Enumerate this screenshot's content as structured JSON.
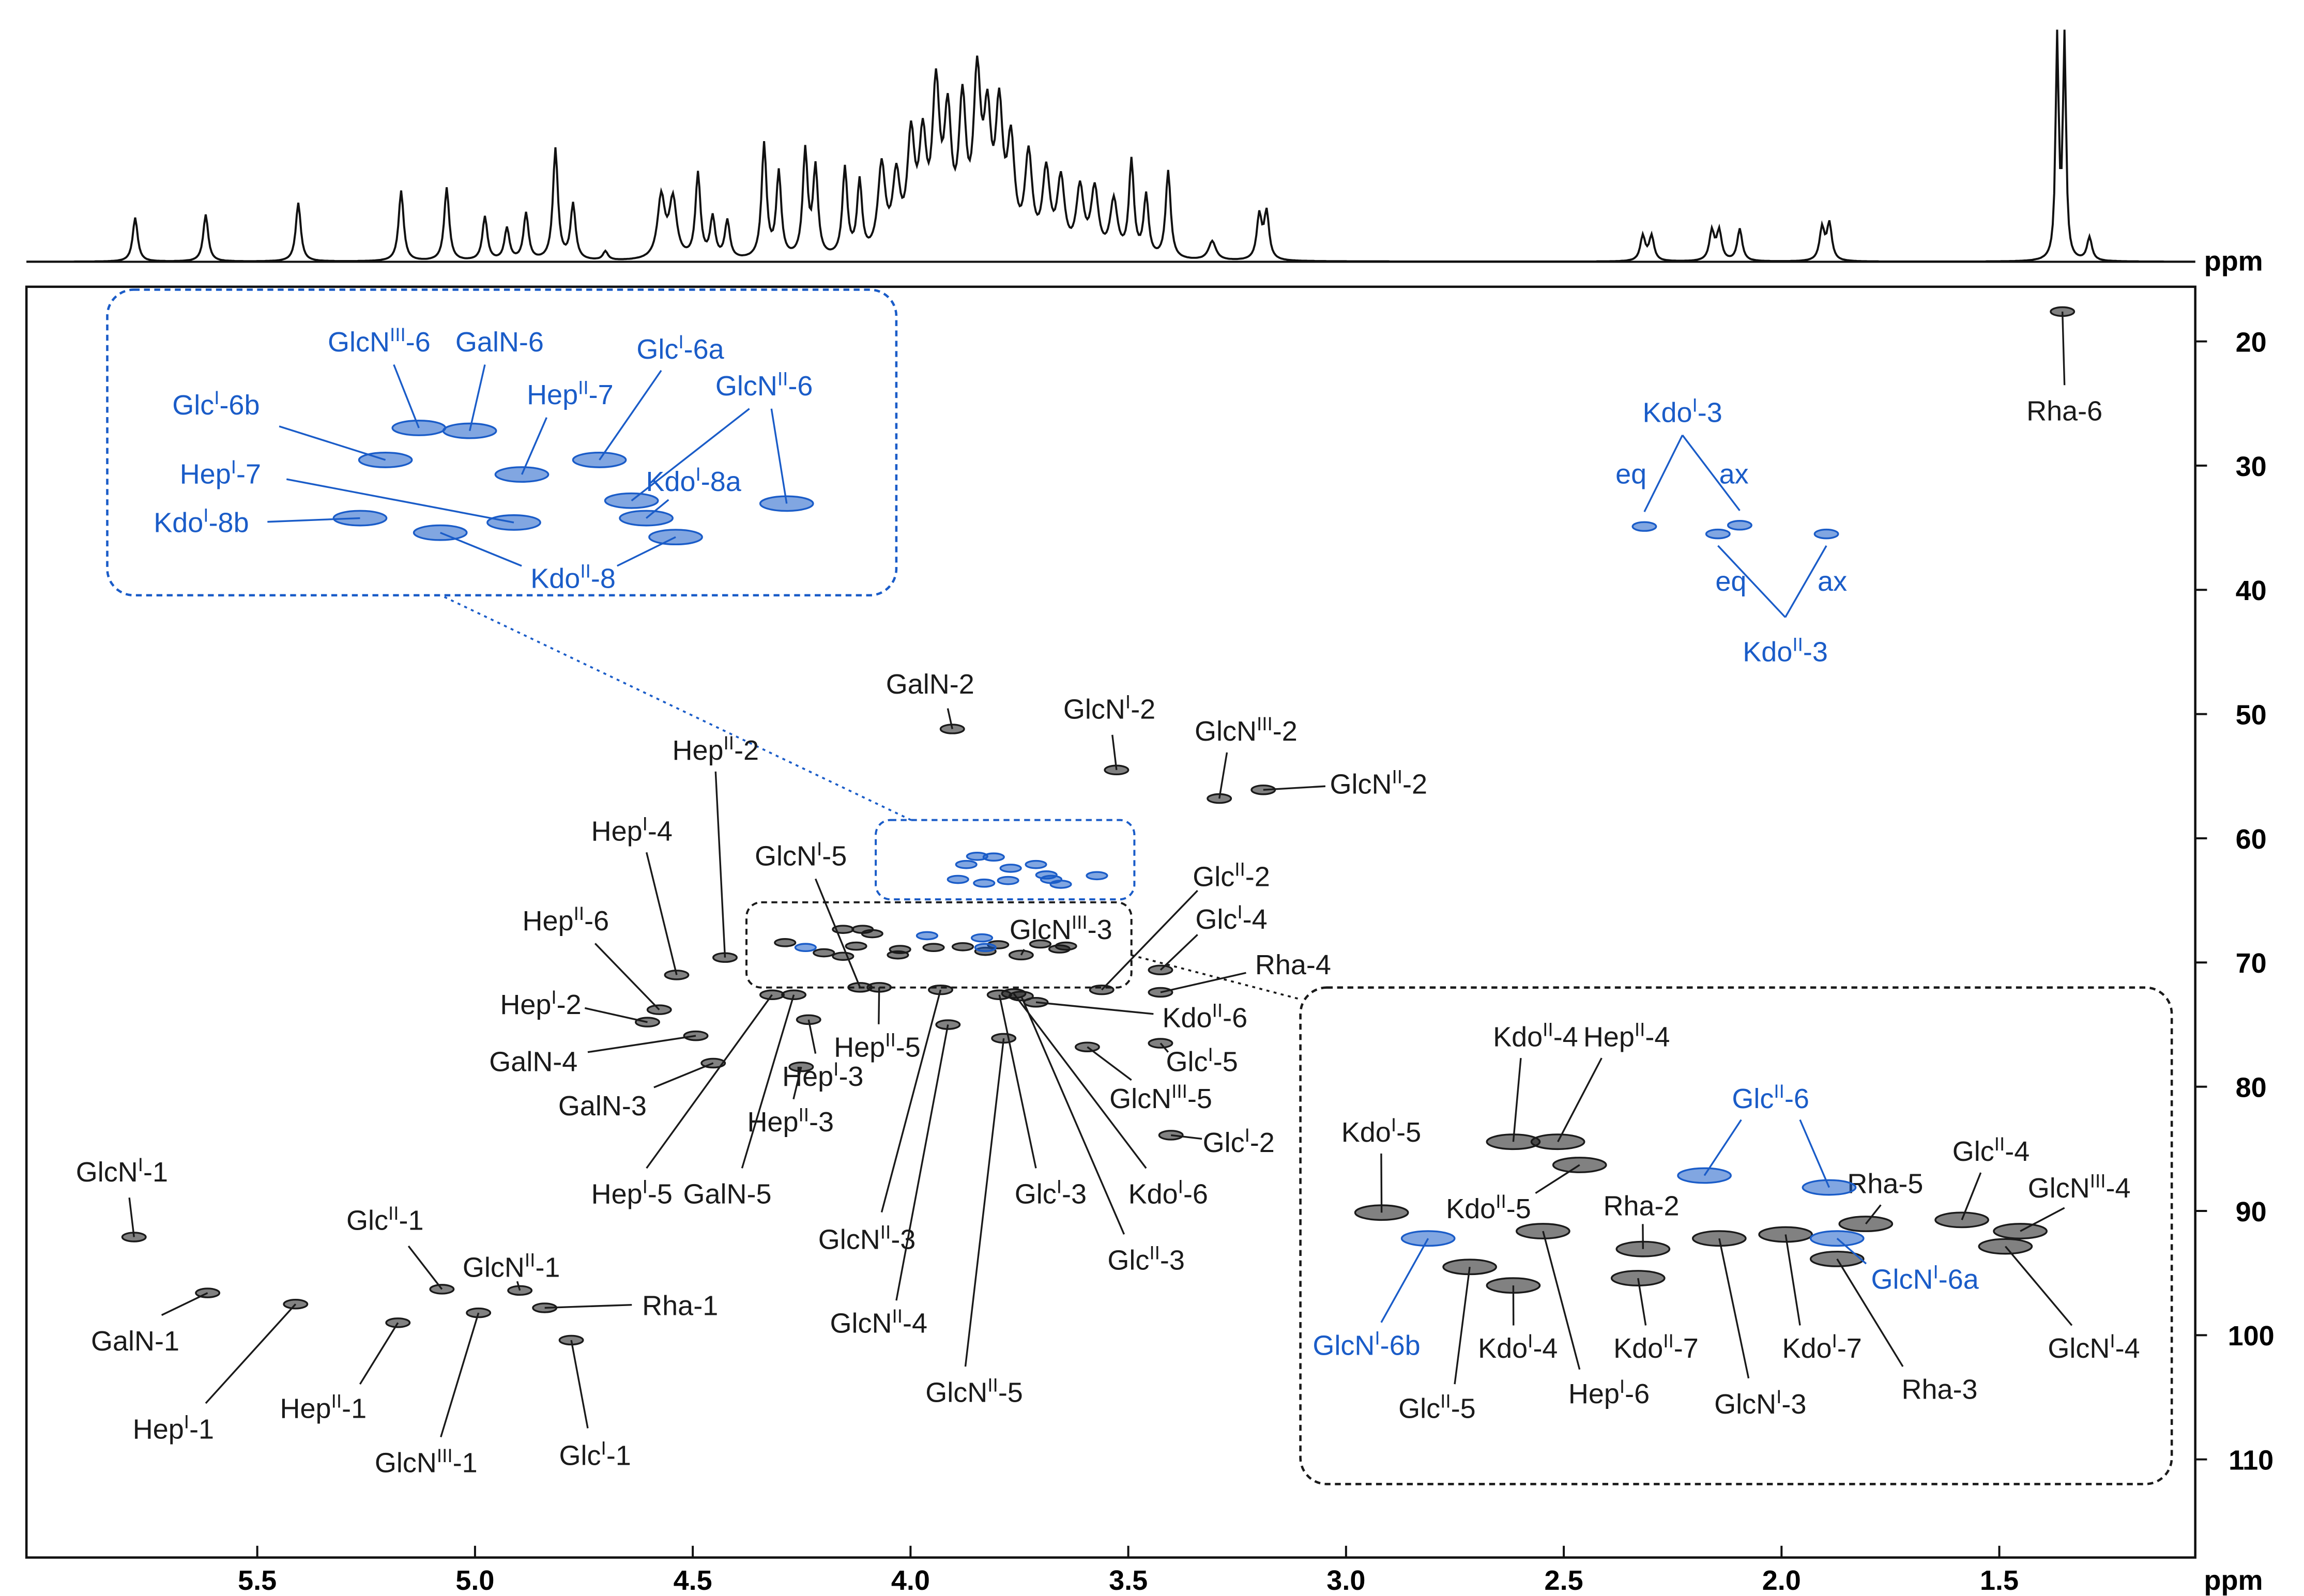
{
  "chart_data": {
    "type": "scatter",
    "x_label": "ppm",
    "top_label": "ppm",
    "xlim": [
      6.03,
      1.05
    ],
    "ylim": [
      15.6,
      117.9
    ],
    "xticks": [
      5.5,
      {
        "value": 5,
        "label": "5.0"
      },
      4.5,
      {
        "value": 4,
        "label": "4.0"
      },
      3.5,
      {
        "value": 3,
        "label": "3.0"
      },
      2.5,
      {
        "value": 2,
        "label": "2.0"
      },
      1.5
    ],
    "yticks": [
      20,
      30,
      40,
      50,
      60,
      70,
      80,
      90,
      100,
      110
    ],
    "series": [
      {
        "color": "#1a1a1a",
        "x": [
          1.355,
          3.904,
          3.527,
          3.291,
          3.19,
          4.426,
          4.116,
          4.537,
          4.577,
          4.604,
          4.493,
          4.453,
          3.746,
          3.561,
          3.426,
          3.426,
          3.712,
          3.426,
          3.594,
          3.402,
          4.072,
          4.234,
          4.251,
          4.318,
          4.268,
          3.931,
          3.796,
          3.763,
          3.746,
          3.914,
          3.786,
          5.783,
          5.614,
          5.412,
          5.076,
          4.897,
          5.177,
          4.992,
          4.84,
          4.779
        ],
        "values": [
          17.6,
          51.2,
          54.5,
          56.8,
          56.1,
          69.6,
          72.0,
          71.0,
          73.8,
          74.8,
          75.9,
          78.1,
          69.4,
          72.2,
          70.6,
          72.4,
          73.2,
          76.5,
          76.8,
          83.9,
          72.0,
          74.6,
          78.4,
          72.6,
          72.6,
          72.2,
          72.6,
          72.5,
          72.7,
          75.0,
          76.1,
          92.1,
          96.6,
          97.5,
          96.3,
          96.4,
          99.0,
          98.2,
          97.8,
          100.4
        ],
        "labels": [
          [
            "Rha-6"
          ],
          [
            "GalN-2"
          ],
          [
            "GlcN",
            "I",
            "-2"
          ],
          [
            "GlcN",
            "III",
            "-2"
          ],
          [
            "GlcN",
            "II",
            "-2"
          ],
          [
            "Hep",
            "II",
            "-2"
          ],
          [
            "GlcN",
            "I",
            "-5"
          ],
          [
            "Hep",
            "I",
            "-4"
          ],
          [
            "Hep",
            "II",
            "-6"
          ],
          [
            "Hep",
            "I",
            "-2"
          ],
          [
            "GalN-4"
          ],
          [
            "GalN-3"
          ],
          [
            "GlcN",
            "III",
            "-3"
          ],
          [
            "Glc",
            "II",
            "-2"
          ],
          [
            "Glc",
            "I",
            "-4"
          ],
          [
            "Rha-4"
          ],
          [
            "Kdo",
            "II",
            "-6"
          ],
          [
            "Glc",
            "I",
            "-5"
          ],
          [
            "GlcN",
            "III",
            "-5"
          ],
          [
            "Glc",
            "I",
            "-2"
          ],
          [
            "Hep",
            "II",
            "-5"
          ],
          [
            "Hep",
            "I",
            "-3"
          ],
          [
            "Hep",
            "II",
            "-3"
          ],
          [
            "Hep",
            "I",
            "-5"
          ],
          [
            "GalN-5"
          ],
          [
            "GlcN",
            "II",
            "-3"
          ],
          [
            "Glc",
            "I",
            "-3"
          ],
          [
            "Kdo",
            "I",
            "-6"
          ],
          [
            "Glc",
            "II",
            "-3"
          ],
          [
            "GlcN",
            "II",
            "-4"
          ],
          [
            "GlcN",
            "II",
            "-5"
          ],
          [
            "GlcN",
            "I",
            "-1"
          ],
          [
            "GalN-1"
          ],
          [
            "Hep",
            "I",
            "-1"
          ],
          [
            "Glc",
            "II",
            "-1"
          ],
          [
            "GlcN",
            "II",
            "-1"
          ],
          [
            "Hep",
            "II",
            "-1"
          ],
          [
            "GlcN",
            "III",
            "-1"
          ],
          [
            "Rha-1"
          ],
          [
            "Glc",
            "I",
            "-1"
          ]
        ]
      },
      {
        "color": "#1a5cc8",
        "x": [
          2.315,
          2.096,
          2.146,
          1.897
        ],
        "values": [
          34.9,
          34.8,
          35.5,
          35.5
        ],
        "labels": [
          [
            "eq"
          ],
          [
            "ax"
          ],
          [
            "eq"
          ],
          [
            "ax"
          ]
        ]
      }
    ],
    "annotations": [
      [
        "Kdo",
        "I",
        "-3"
      ],
      [
        "Kdo",
        "II",
        "-3"
      ]
    ],
    "insets": [
      {
        "series": [
          {
            "color": "#1a5cc8",
            "x": [
              3.847,
              3.809,
              3.712,
              3.77,
              3.872,
              3.688,
              3.572,
              3.776,
              3.677,
              3.891,
              3.831,
              3.655
            ],
            "values": [
              61.45,
              61.51,
              62.11,
              62.41,
              62.11,
              62.95,
              63.01,
              63.4,
              63.31,
              63.31,
              63.61,
              63.7
            ],
            "labels": [
              [
                "GlcN",
                "III",
                "-6"
              ],
              [
                "GalN-6"
              ],
              [
                "Glc",
                "I",
                "-6a"
              ],
              [
                "Hep",
                "II",
                "-7"
              ],
              [
                "Glc",
                "I",
                "-6b"
              ],
              [
                "GlcN",
                "II",
                "-6"
              ],
              null,
              [
                "Hep",
                "I",
                "-7"
              ],
              [
                "Kdo",
                "I",
                "-8a"
              ],
              [
                "Kdo",
                "I",
                "-8b"
              ],
              [
                "Kdo",
                "II",
                "-8"
              ],
              null
            ]
          }
        ]
      },
      {
        "series": [
          {
            "color": "#1a1a1a",
            "x": [
              4.155,
              4.11,
              4.288,
              4.088,
              4.024,
              4.125,
              4.029,
              4.199,
              4.155,
              3.947,
              3.88,
              3.799,
              3.828,
              3.702,
              3.643,
              3.658
            ],
            "values": [
              67.33,
              67.33,
              68.4,
              67.68,
              68.95,
              68.68,
              69.39,
              69.22,
              69.5,
              68.79,
              68.73,
              68.57,
              69.1,
              68.51,
              68.68,
              68.91
            ],
            "labels": [
              [
                "Kdo",
                "II",
                "-4"
              ],
              [
                "Hep",
                "II",
                "-4"
              ],
              [
                "Kdo",
                "I",
                "-5"
              ],
              [
                "Kdo",
                "II",
                "-5"
              ],
              [
                "Rha-2"
              ],
              [
                "Hep",
                "I",
                "-6"
              ],
              [
                "Kdo",
                "II",
                "-7"
              ],
              [
                "Glc",
                "II",
                "-5"
              ],
              [
                "Kdo",
                "I",
                "-4"
              ],
              [
                "GlcN",
                "I",
                "-3"
              ],
              [
                "Kdo",
                "I",
                "-7"
              ],
              [
                "Rha-5"
              ],
              [
                "Rha-3"
              ],
              [
                "Glc",
                "II",
                "-4"
              ],
              [
                "GlcN",
                "III",
                "-4"
              ],
              [
                "GlcN",
                "I",
                "-4"
              ]
            ]
          },
          {
            "color": "#1a5cc8",
            "x": [
              3.962,
              3.836,
              3.828,
              4.241
            ],
            "values": [
              67.84,
              68.02,
              68.79,
              68.79
            ],
            "labels": [
              [
                "Glc",
                "II",
                "-6"
              ],
              null,
              [
                "GlcN",
                "I",
                "-6a"
              ],
              [
                "GlcN",
                "I",
                "-6b"
              ]
            ]
          }
        ]
      }
    ]
  }
}
